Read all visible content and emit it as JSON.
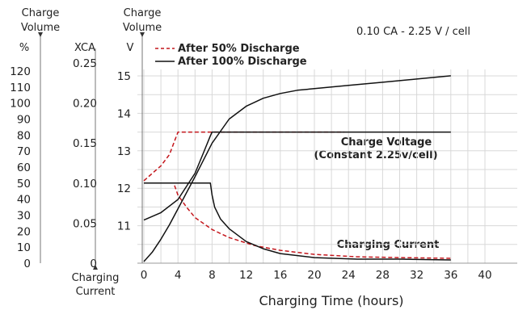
{
  "chart_data": {
    "type": "line",
    "title": "0.10 CA - 2.25 V / cell",
    "xlabel": "Charging Time (hours)",
    "x_ticks": [
      "0",
      "4",
      "8",
      "12",
      "16",
      "20",
      "24",
      "28",
      "32",
      "36",
      "40"
    ],
    "xlim": [
      0,
      40
    ],
    "axes": {
      "volume": {
        "title_lines": [
          "Charge",
          "Volume"
        ],
        "unit": "%",
        "ticks": [
          "0",
          "10",
          "20",
          "30",
          "40",
          "50",
          "60",
          "70",
          "80",
          "90",
          "100",
          "110",
          "120"
        ],
        "range": [
          0,
          120
        ]
      },
      "current": {
        "unit": "XCA",
        "ticks": [
          "0",
          "0.05",
          "0.10",
          "0.15",
          "0.20",
          "0.25"
        ],
        "bottom_label_lines": [
          "Charging",
          "Current"
        ],
        "range": [
          0,
          0.25
        ]
      },
      "voltage": {
        "title_lines": [
          "Charge",
          "Volume"
        ],
        "unit": "V",
        "ticks": [
          "11",
          "12",
          "13",
          "14",
          "15"
        ],
        "range": [
          10,
          15
        ]
      }
    },
    "annotations": {
      "voltage_line1": "Charge Voltage",
      "voltage_line2": "(Constant 2.25v/cell)",
      "current": "Charging Current"
    },
    "legend_position": "top-left",
    "series": [
      {
        "name": "After 50% Discharge",
        "style": "dashed",
        "color": "#c4161c",
        "curves": {
          "voltage": {
            "axis": "voltage",
            "x": [
              0,
              1,
              2,
              3,
              3.5,
              4,
              8,
              23.5
            ],
            "y": [
              12.2,
              12.4,
              12.6,
              12.9,
              13.2,
              13.5,
              13.5,
              13.5
            ]
          },
          "current": {
            "axis": "current",
            "x": [
              0,
              3.5,
              4,
              5,
              6,
              8,
              10,
              13,
              16,
              20,
              25,
              30,
              36
            ],
            "y": [
              0.1,
              0.1,
              0.085,
              0.07,
              0.057,
              0.042,
              0.032,
              0.022,
              0.016,
              0.011,
              0.008,
              0.007,
              0.006
            ]
          }
        }
      },
      {
        "name": "After 100% Discharge",
        "style": "solid",
        "color": "#111111",
        "curves": {
          "voltage": {
            "axis": "voltage",
            "x": [
              0,
              2,
              4,
              6,
              7,
              7.8,
              8,
              36
            ],
            "y": [
              11.15,
              11.35,
              11.7,
              12.4,
              12.95,
              13.4,
              13.5,
              13.5
            ]
          },
          "current": {
            "axis": "current",
            "x": [
              0,
              7.8,
              8,
              8.3,
              9,
              10,
              12,
              14,
              16,
              20,
              25,
              30,
              36
            ],
            "y": [
              0.1,
              0.1,
              0.085,
              0.07,
              0.055,
              0.043,
              0.027,
              0.018,
              0.012,
              0.007,
              0.005,
              0.005,
              0.004
            ]
          },
          "volume": {
            "axis": "volume",
            "x": [
              0,
              1,
              2,
              3,
              4,
              6,
              8,
              10,
              12,
              14,
              16,
              18,
              20,
              24,
              28,
              32,
              36
            ],
            "y": [
              1,
              7,
              15,
              24,
              34,
              54,
              75,
              90,
              98,
              103,
              106,
              108,
              109,
              111,
              113,
              115,
              117
            ]
          }
        }
      }
    ]
  }
}
